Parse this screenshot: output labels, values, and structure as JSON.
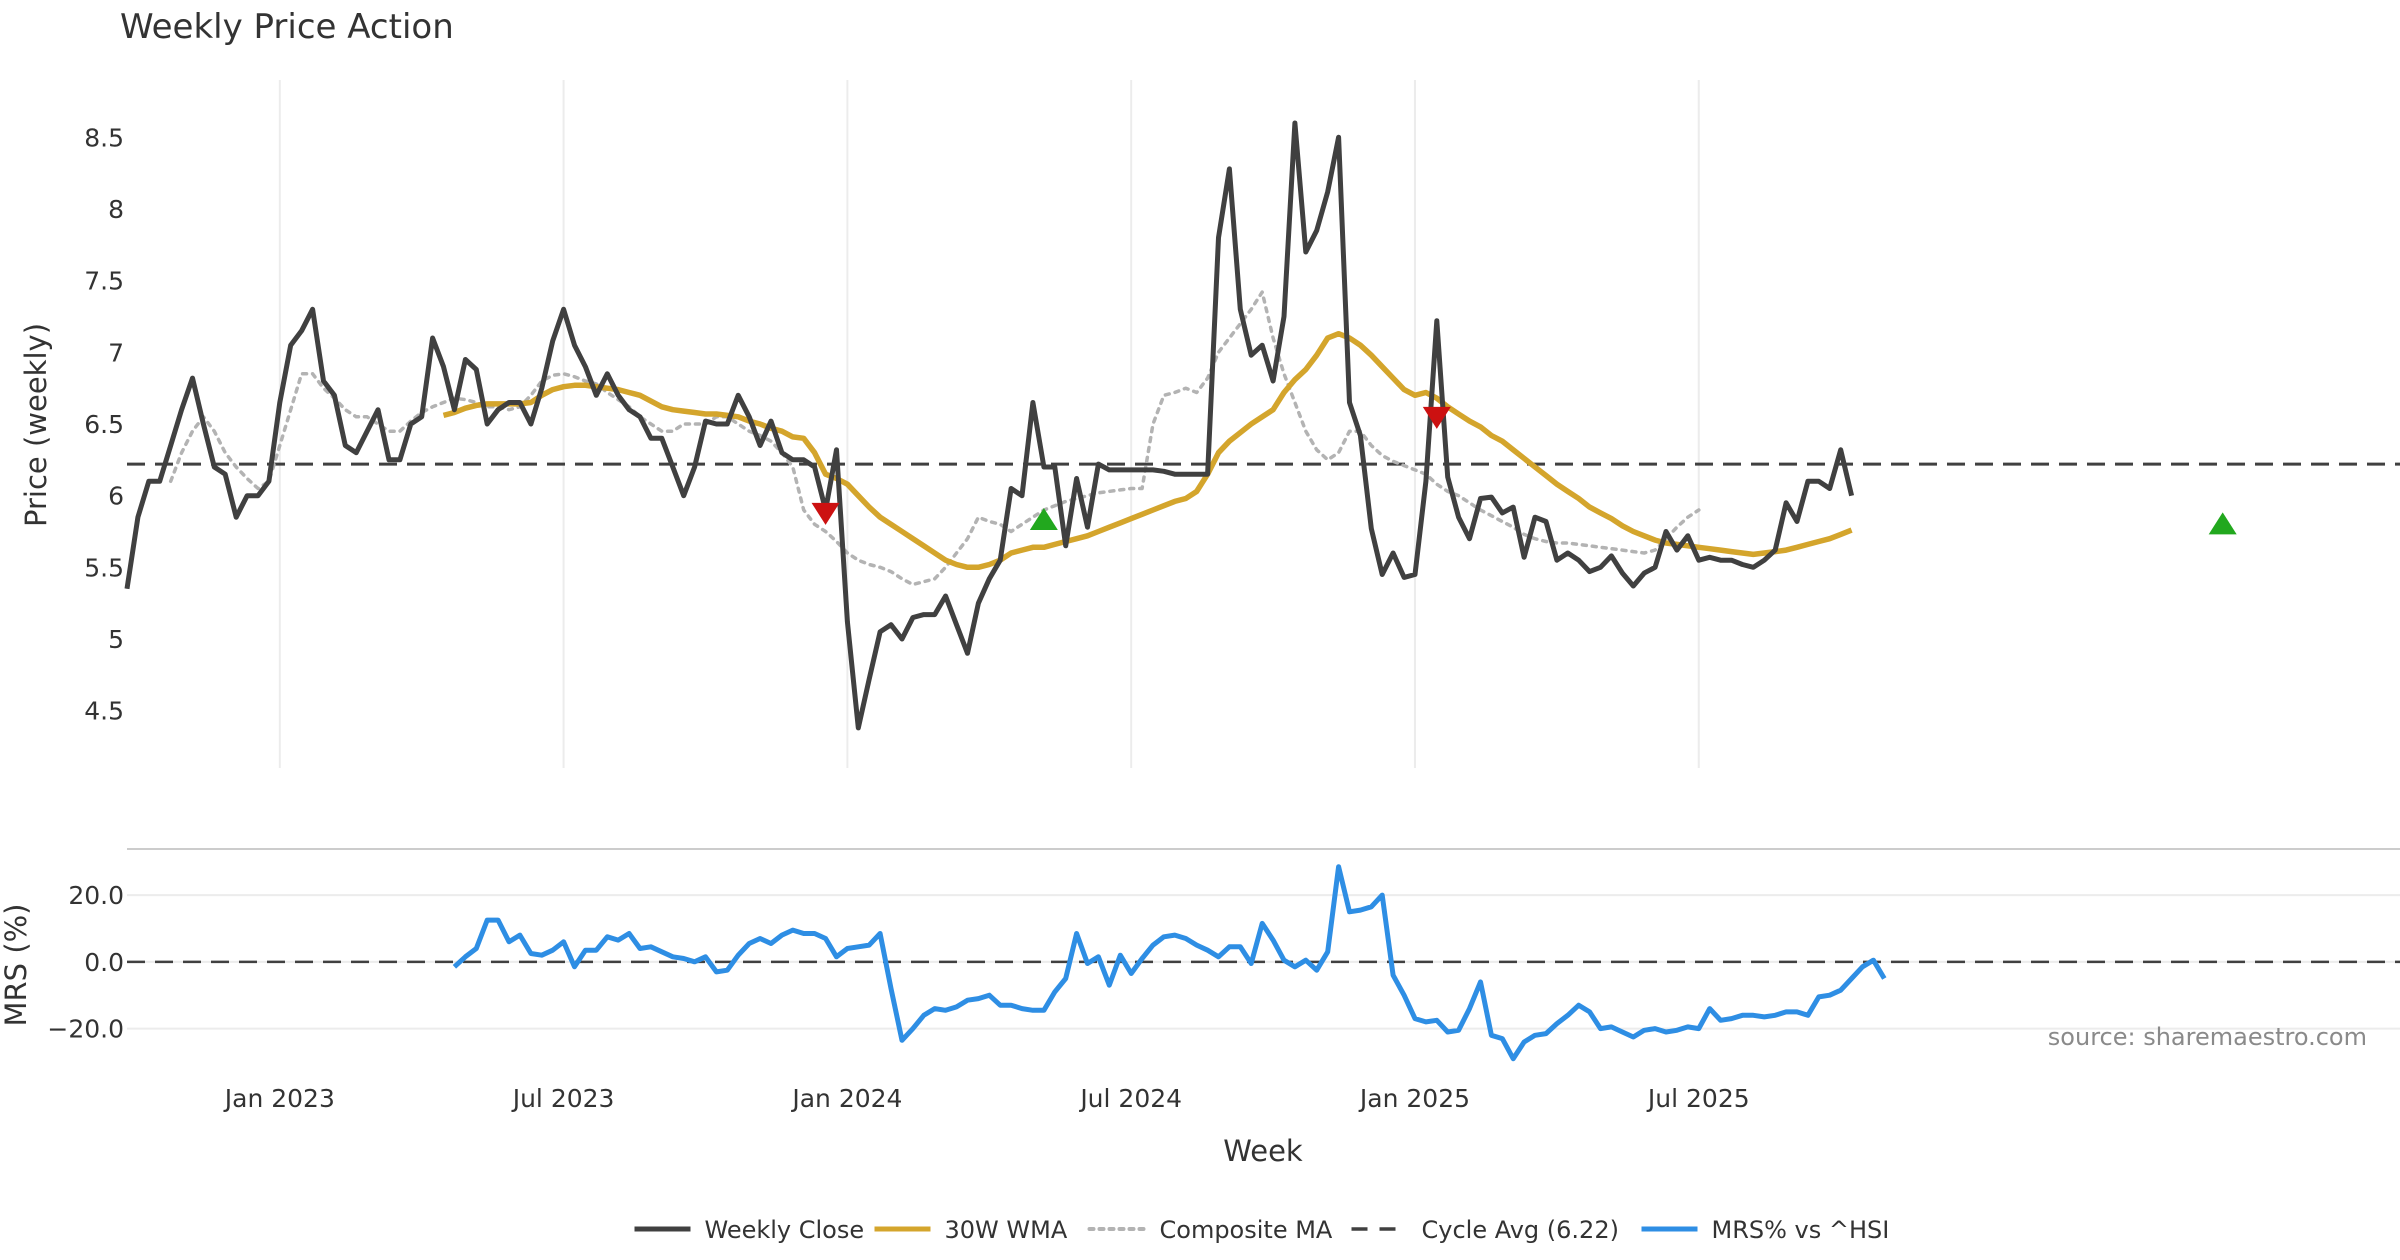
{
  "chart_data": {
    "type": "line",
    "title": "Weekly Price Action",
    "xlabel": "Week",
    "source": "source: sharemaestro.com",
    "x_ticks": [
      "Jan 2023",
      "Jul 2023",
      "Jan 2024",
      "Jul 2024",
      "Jan 2025",
      "Jul 2025"
    ],
    "x_range_weeks": [
      -14,
      186
    ],
    "price_panel": {
      "ylabel": "Price (weekly)",
      "ylim": [
        4.1,
        8.9
      ],
      "yticks": [
        "4.5",
        "5",
        "5.5",
        "6",
        "6.5",
        "7",
        "7.5",
        "8",
        "8.5"
      ],
      "ytick_values": [
        4.5,
        5,
        5.5,
        6,
        6.5,
        7,
        7.5,
        8,
        8.5
      ],
      "cycle_avg": 6.22,
      "series": [
        {
          "name": "Weekly Close",
          "color": "#404040",
          "start_week": -14,
          "values": [
            5.35,
            5.85,
            6.1,
            6.1,
            6.35,
            6.6,
            6.82,
            6.5,
            6.2,
            6.15,
            5.85,
            6.0,
            6.0,
            6.1,
            6.65,
            7.05,
            7.15,
            7.3,
            6.8,
            6.7,
            6.35,
            6.3,
            6.45,
            6.6,
            6.25,
            6.25,
            6.5,
            6.55,
            7.1,
            6.9,
            6.6,
            6.95,
            6.88,
            6.5,
            6.6,
            6.65,
            6.65,
            6.5,
            6.75,
            7.08,
            7.3,
            7.05,
            6.9,
            6.7,
            6.85,
            6.7,
            6.6,
            6.55,
            6.4,
            6.4,
            6.2,
            6.0,
            6.2,
            6.52,
            6.5,
            6.5,
            6.7,
            6.55,
            6.35,
            6.52,
            6.3,
            6.25,
            6.25,
            6.2,
            5.9,
            6.32,
            5.12,
            4.38,
            4.72,
            5.05,
            5.1,
            5.0,
            5.15,
            5.17,
            5.17,
            5.3,
            5.1,
            4.9,
            5.25,
            5.42,
            5.55,
            6.05,
            6.0,
            6.65,
            6.2,
            6.2,
            5.65,
            6.12,
            5.78,
            6.22,
            6.18,
            6.18,
            6.18,
            6.18,
            6.18,
            6.17,
            6.15,
            6.15,
            6.15,
            6.15,
            7.8,
            8.28,
            7.3,
            6.98,
            7.05,
            6.8,
            7.25,
            8.6,
            7.7,
            7.85,
            8.12,
            8.5,
            6.65,
            6.42,
            5.77,
            5.45,
            5.6,
            5.43,
            5.45,
            6.1,
            7.22,
            6.13,
            5.85,
            5.7,
            5.98,
            5.99,
            5.88,
            5.92,
            5.57,
            5.85,
            5.82,
            5.55,
            5.6,
            5.55,
            5.47,
            5.5,
            5.58,
            5.46,
            5.37,
            5.46,
            5.5,
            5.75,
            5.62,
            5.72,
            5.55,
            5.57,
            5.55,
            5.55,
            5.52,
            5.5,
            5.55,
            5.62,
            5.95,
            5.82,
            6.1,
            6.1,
            6.05,
            6.32,
            6.0
          ]
        },
        {
          "name": "30W WMA",
          "color": "#d4a52c",
          "start_week": 15,
          "values": [
            6.56,
            6.58,
            6.61,
            6.63,
            6.64,
            6.64,
            6.64,
            6.64,
            6.65,
            6.7,
            6.74,
            6.76,
            6.77,
            6.77,
            6.76,
            6.75,
            6.74,
            6.72,
            6.7,
            6.66,
            6.62,
            6.6,
            6.59,
            6.58,
            6.57,
            6.57,
            6.56,
            6.55,
            6.52,
            6.5,
            6.47,
            6.45,
            6.41,
            6.4,
            6.3,
            6.15,
            6.12,
            6.08,
            6.0,
            5.92,
            5.85,
            5.8,
            5.75,
            5.7,
            5.65,
            5.6,
            5.55,
            5.52,
            5.5,
            5.5,
            5.52,
            5.55,
            5.6,
            5.62,
            5.64,
            5.64,
            5.66,
            5.68,
            5.7,
            5.72,
            5.75,
            5.78,
            5.81,
            5.84,
            5.87,
            5.9,
            5.93,
            5.96,
            5.98,
            6.03,
            6.15,
            6.3,
            6.38,
            6.44,
            6.5,
            6.55,
            6.6,
            6.72,
            6.81,
            6.88,
            6.98,
            7.1,
            7.13,
            7.1,
            7.05,
            6.98,
            6.9,
            6.82,
            6.74,
            6.7,
            6.72,
            6.68,
            6.62,
            6.57,
            6.52,
            6.48,
            6.42,
            6.38,
            6.32,
            6.26,
            6.2,
            6.14,
            6.08,
            6.03,
            5.98,
            5.92,
            5.88,
            5.84,
            5.79,
            5.75,
            5.72,
            5.69,
            5.67,
            5.66,
            5.65,
            5.64,
            5.63,
            5.62,
            5.61,
            5.6,
            5.59,
            5.6,
            5.61,
            5.62,
            5.64,
            5.66,
            5.68,
            5.7,
            5.73,
            5.76
          ]
        },
        {
          "name": "Composite MA",
          "color": "#b3b3b3",
          "start_week": -10,
          "values": [
            6.1,
            6.3,
            6.45,
            6.55,
            6.45,
            6.3,
            6.2,
            6.12,
            6.05,
            6.1,
            6.35,
            6.6,
            6.85,
            6.85,
            6.75,
            6.68,
            6.6,
            6.55,
            6.55,
            6.5,
            6.45,
            6.45,
            6.52,
            6.58,
            6.62,
            6.65,
            6.68,
            6.67,
            6.65,
            6.62,
            6.62,
            6.6,
            6.62,
            6.7,
            6.8,
            6.84,
            6.85,
            6.83,
            6.8,
            6.78,
            6.72,
            6.67,
            6.62,
            6.55,
            6.5,
            6.45,
            6.45,
            6.5,
            6.5,
            6.5,
            6.55,
            6.55,
            6.5,
            6.45,
            6.42,
            6.38,
            6.3,
            6.2,
            5.9,
            5.8,
            5.75,
            5.68,
            5.6,
            5.55,
            5.52,
            5.5,
            5.47,
            5.42,
            5.38,
            5.4,
            5.42,
            5.5,
            5.6,
            5.7,
            5.85,
            5.82,
            5.8,
            5.75,
            5.8,
            5.85,
            5.9,
            5.93,
            5.96,
            5.98,
            6.0,
            6.02,
            6.03,
            6.04,
            6.05,
            6.05,
            6.5,
            6.7,
            6.72,
            6.75,
            6.72,
            6.82,
            7.0,
            7.1,
            7.2,
            7.3,
            7.42,
            7.1,
            6.85,
            6.65,
            6.45,
            6.32,
            6.25,
            6.3,
            6.45,
            6.45,
            6.35,
            6.28,
            6.24,
            6.21,
            6.18,
            6.15,
            6.08,
            6.03,
            6.0,
            5.95,
            5.9,
            5.86,
            5.82,
            5.78,
            5.73,
            5.7,
            5.68,
            5.67,
            5.67,
            5.66,
            5.65,
            5.64,
            5.63,
            5.62,
            5.61,
            5.6,
            5.62,
            5.7,
            5.78,
            5.85,
            5.9
          ]
        }
      ],
      "signals": [
        {
          "type": "sell",
          "week": 50,
          "value": 5.88,
          "color": "#cc1111"
        },
        {
          "type": "buy",
          "week": 70,
          "value": 5.83,
          "color": "#22a81e"
        },
        {
          "type": "sell",
          "week": 106,
          "value": 6.55,
          "color": "#cc1111"
        },
        {
          "type": "buy",
          "week": 178,
          "value": 5.8,
          "color": "#22a81e"
        }
      ]
    },
    "mrs_panel": {
      "ylabel": "MRS (%)",
      "ylim": [
        -30,
        32
      ],
      "yticks": [
        "20.0",
        "0.0",
        "−20.0"
      ],
      "ytick_values": [
        20,
        0,
        -20
      ],
      "zero_line": 0,
      "series": {
        "name": "MRS% vs ^HSI",
        "color": "#2e8ee4",
        "start_week": 16,
        "values": [
          -1.5,
          1.5,
          4,
          12.5,
          12.5,
          6,
          8,
          2.5,
          2,
          3.5,
          6,
          -1.5,
          3.5,
          3.5,
          7.5,
          6.5,
          8.5,
          4,
          4.5,
          3,
          1.5,
          1,
          0,
          1.5,
          -3,
          -2.5,
          2,
          5.5,
          7,
          5.5,
          8,
          9.5,
          8.5,
          8.5,
          7,
          1.5,
          4,
          4.5,
          5,
          8.5,
          -8,
          -23.5,
          -20,
          -16,
          -14,
          -14.5,
          -13.5,
          -11.5,
          -11,
          -10,
          -13,
          -13,
          -14,
          -14.5,
          -14.5,
          -9,
          -5,
          8.5,
          -0.5,
          1.5,
          -7,
          2,
          -3.5,
          1,
          5,
          7.5,
          8,
          7,
          5,
          3.5,
          1.5,
          4.5,
          4.5,
          -0.5,
          11.5,
          6.5,
          0.5,
          -1.5,
          0.5,
          -2.5,
          3,
          28.5,
          15,
          15.5,
          16.5,
          20,
          -4,
          -10,
          -17,
          -18,
          -17.5,
          -21,
          -20.5,
          -14,
          -6,
          -22,
          -23,
          -29,
          -24,
          -22,
          -21.5,
          -18.5,
          -16,
          -13,
          -15,
          -20,
          -19.5,
          -21,
          -22.5,
          -20.5,
          -20,
          -21,
          -20.5,
          -19.5,
          -20,
          -14,
          -17.5,
          -17,
          -16,
          -16,
          -16.5,
          -16,
          -15,
          -15,
          -16,
          -10.5,
          -10,
          -8.5,
          -5,
          -1.5,
          0.5,
          -5
        ]
      }
    },
    "legend": [
      {
        "label": "Weekly Close",
        "style": "solid",
        "color": "#404040"
      },
      {
        "label": "30W WMA",
        "style": "solid",
        "color": "#d4a52c"
      },
      {
        "label": "Composite MA",
        "style": "dotted",
        "color": "#b3b3b3"
      },
      {
        "label": "Cycle Avg (6.22)",
        "style": "dashed",
        "color": "#404040"
      },
      {
        "label": "MRS% vs ^HSI",
        "style": "solid",
        "color": "#2e8ee4"
      }
    ]
  }
}
